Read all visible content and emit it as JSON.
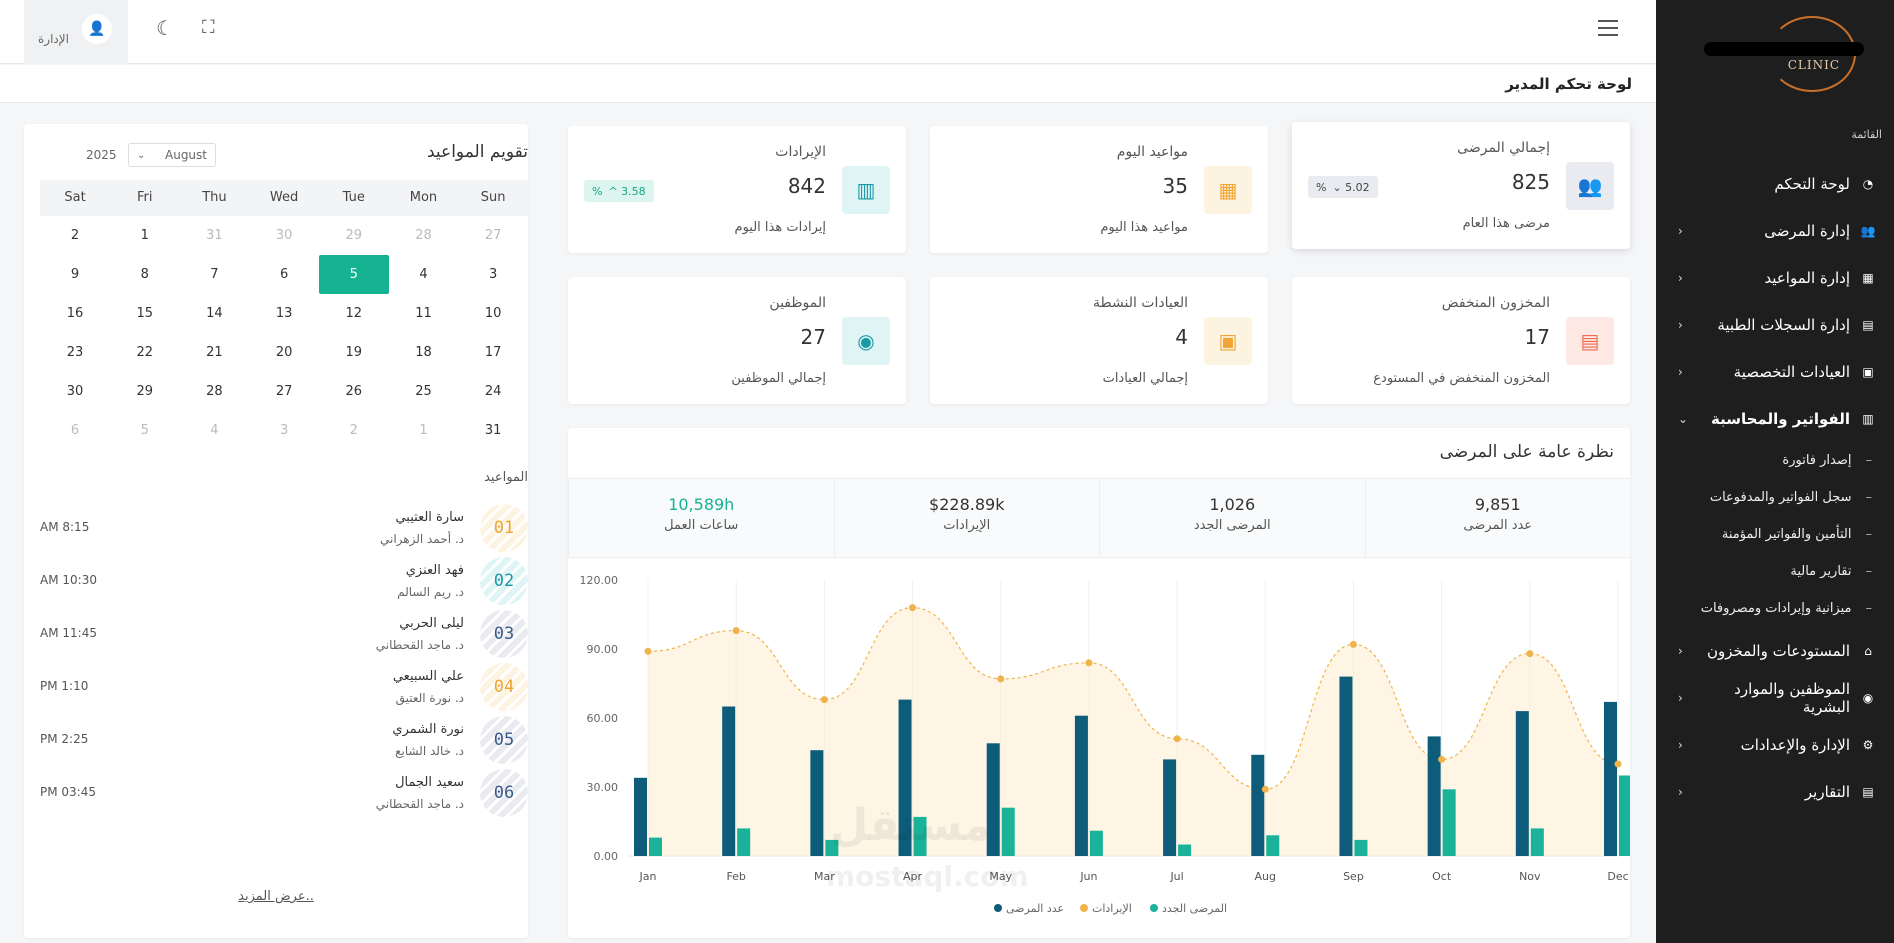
{
  "sidebar": {
    "logo_text": "CLINIC",
    "menu_heading": "القائمة",
    "items": [
      {
        "label": "لوحة التحكم",
        "icon": "gauge-icon",
        "chevron": ""
      },
      {
        "label": "إدارة المرضى",
        "icon": "patients-icon",
        "chevron": "›"
      },
      {
        "label": "إدارة المواعيد",
        "icon": "calendar-icon",
        "chevron": "›"
      },
      {
        "label": "إدارة السجلات الطبية",
        "icon": "clipboard-icon",
        "chevron": "›"
      },
      {
        "label": "العيادات التخصصية",
        "icon": "hospital-icon",
        "chevron": "›"
      },
      {
        "label": "الفواتير والمحاسبة",
        "icon": "invoice-icon",
        "chevron": "⌄"
      }
    ],
    "subitems": [
      "إصدار فاتورة",
      "سجل الفواتير والمدفوعات",
      "التأمين والفواتير المؤمنة",
      "تقارير مالية",
      "ميزانية وإيرادات ومصروفات"
    ],
    "items_after": [
      {
        "label": "المستودعات والمخزون",
        "icon": "warehouse-icon",
        "chevron": "›"
      },
      {
        "label": "الموظفين والموارد البشرية",
        "icon": "staff-icon",
        "chevron": "›"
      },
      {
        "label": "الإدارة والإعدادات",
        "icon": "gear-icon",
        "chevron": "›"
      },
      {
        "label": "التقارير",
        "icon": "report-icon",
        "chevron": "›"
      }
    ]
  },
  "topbar": {
    "admin_label": "الإدارة"
  },
  "page_title": "لوحة تحكم المدير",
  "stats": [
    {
      "title": "إجمالي المرضى",
      "value": "825",
      "sub": "مرضى هذا العام",
      "badge": "5.02",
      "badge_sym": "%",
      "badge_arrow": "⌄",
      "icon": "users-icon",
      "color": "#e9ebf0",
      "icon_color": "#3b5b8a"
    },
    {
      "title": "مواعيد اليوم",
      "value": "35",
      "sub": "مواعيد هذا اليوم",
      "badge": "",
      "icon": "calendar-icon",
      "color": "#fdf3e1",
      "icon_color": "#f0a532"
    },
    {
      "title": "الإيرادات",
      "value": "842",
      "sub": "إيرادات هذا اليوم",
      "badge": "3.58",
      "badge_sym": "%",
      "badge_arrow": "^",
      "icon": "money-icon",
      "color": "#dff4f4",
      "icon_color": "#1a9aa8"
    },
    {
      "title": "المخزون المنخفض",
      "value": "17",
      "sub": "المخزون المنخفض في المستودع",
      "badge": "",
      "icon": "stock-icon",
      "color": "#fde8e4",
      "icon_color": "#ef6b4f"
    },
    {
      "title": "العيادات النشطة",
      "value": "4",
      "sub": "إجمالي العيادات",
      "badge": "",
      "icon": "clinic-icon",
      "color": "#fdf3e1",
      "icon_color": "#f0a532"
    },
    {
      "title": "الموظفين",
      "value": "27",
      "sub": "إجمالي الموظفين",
      "badge": "",
      "icon": "staff-icon",
      "color": "#dff4f4",
      "icon_color": "#1a9aa8"
    }
  ],
  "overview": {
    "title": "نظرة عامة على المرضى",
    "summary": [
      {
        "value": "9,851",
        "label": "عدد المرضى",
        "color": "#333"
      },
      {
        "value": "1,026",
        "label": "المرضى الجدد",
        "color": "#333"
      },
      {
        "value": "$228.89k",
        "label": "الإيرادات",
        "color": "#333"
      },
      {
        "value": "10,589h",
        "label": "ساعات العمل",
        "color": "#15b391"
      }
    ]
  },
  "chart_data": {
    "type": "bar",
    "categories": [
      "Jan",
      "Feb",
      "Mar",
      "Apr",
      "May",
      "Jun",
      "Jul",
      "Aug",
      "Sep",
      "Oct",
      "Nov",
      "Dec"
    ],
    "ylim": [
      0,
      120
    ],
    "yticks": [
      "0.00",
      "30.00",
      "60.00",
      "90.00",
      "120.00"
    ],
    "series": [
      {
        "name": "عدد المرضى",
        "kind": "bar",
        "color": "#0d5c79",
        "values": [
          34,
          65,
          46,
          68,
          49,
          61,
          42,
          44,
          78,
          52,
          63,
          67
        ]
      },
      {
        "name": "المرضى الجدد",
        "kind": "bar",
        "color": "#1ab39a",
        "values": [
          8,
          12,
          7,
          17,
          21,
          11,
          5,
          9,
          7,
          29,
          12,
          35
        ]
      },
      {
        "name": "الإيرادات",
        "kind": "area",
        "color": "#f0b34a",
        "values": [
          89,
          98,
          68,
          108,
          77,
          84,
          51,
          29,
          92,
          42,
          88,
          40
        ]
      }
    ]
  },
  "calendar": {
    "title": "تقويم المواعيد",
    "month": "August",
    "year": "2025",
    "weekdays": [
      "Sun",
      "Mon",
      "Tue",
      "Wed",
      "Thu",
      "Fri",
      "Sat"
    ],
    "weeks": [
      [
        {
          "d": "27",
          "m": 1
        },
        {
          "d": "28",
          "m": 1
        },
        {
          "d": "29",
          "m": 1
        },
        {
          "d": "30",
          "m": 1
        },
        {
          "d": "31",
          "m": 1
        },
        {
          "d": "1",
          "m": 0
        },
        {
          "d": "2",
          "m": 0
        }
      ],
      [
        {
          "d": "3",
          "m": 0
        },
        {
          "d": "4",
          "m": 0
        },
        {
          "d": "5",
          "m": 0,
          "t": 1
        },
        {
          "d": "6",
          "m": 0
        },
        {
          "d": "7",
          "m": 0
        },
        {
          "d": "8",
          "m": 0
        },
        {
          "d": "9",
          "m": 0
        }
      ],
      [
        {
          "d": "10",
          "m": 0
        },
        {
          "d": "11",
          "m": 0
        },
        {
          "d": "12",
          "m": 0
        },
        {
          "d": "13",
          "m": 0
        },
        {
          "d": "14",
          "m": 0
        },
        {
          "d": "15",
          "m": 0
        },
        {
          "d": "16",
          "m": 0
        }
      ],
      [
        {
          "d": "17",
          "m": 0
        },
        {
          "d": "18",
          "m": 0
        },
        {
          "d": "19",
          "m": 0
        },
        {
          "d": "20",
          "m": 0
        },
        {
          "d": "21",
          "m": 0
        },
        {
          "d": "22",
          "m": 0
        },
        {
          "d": "23",
          "m": 0
        }
      ],
      [
        {
          "d": "24",
          "m": 0
        },
        {
          "d": "25",
          "m": 0
        },
        {
          "d": "26",
          "m": 0
        },
        {
          "d": "27",
          "m": 0
        },
        {
          "d": "28",
          "m": 0
        },
        {
          "d": "29",
          "m": 0
        },
        {
          "d": "30",
          "m": 0
        }
      ],
      [
        {
          "d": "31",
          "m": 0
        },
        {
          "d": "1",
          "m": 1
        },
        {
          "d": "2",
          "m": 1
        },
        {
          "d": "3",
          "m": 1
        },
        {
          "d": "4",
          "m": 1
        },
        {
          "d": "5",
          "m": 1
        },
        {
          "d": "6",
          "m": 1
        }
      ]
    ]
  },
  "appointments": {
    "heading": "المواعيد",
    "items": [
      {
        "num": "01",
        "name": "سارة العتيبي",
        "doctor": "د. أحمد الزهراني",
        "time": "AM 8:15",
        "color": "#f0a532",
        "bg": "#fdf3e1"
      },
      {
        "num": "02",
        "name": "فهد العنزي",
        "doctor": "د. ريم السالم",
        "time": "AM 10:30",
        "color": "#1a9aa8",
        "bg": "#dff4f4"
      },
      {
        "num": "03",
        "name": "ليلى الحربي",
        "doctor": "د. ماجد القحطاني",
        "time": "AM 11:45",
        "color": "#3b5b8a",
        "bg": "#e9ebf0"
      },
      {
        "num": "04",
        "name": "علي السبيعي",
        "doctor": "د. نورة العتيق",
        "time": "PM 1:10",
        "color": "#f0a532",
        "bg": "#fdf3e1"
      },
      {
        "num": "05",
        "name": "نورة الشمري",
        "doctor": "د. خالد الشايع",
        "time": "PM 2:25",
        "color": "#3b5b8a",
        "bg": "#e9ebf0"
      },
      {
        "num": "06",
        "name": "سعيد الجمال",
        "doctor": "د. ماجد القحطاني",
        "time": "PM 03:45",
        "color": "#3b5b8a",
        "bg": "#e9ebf0"
      }
    ],
    "more": "عرض المزيد.."
  },
  "watermark": {
    "ar": "مستقل",
    "en": "mostaql.com"
  }
}
